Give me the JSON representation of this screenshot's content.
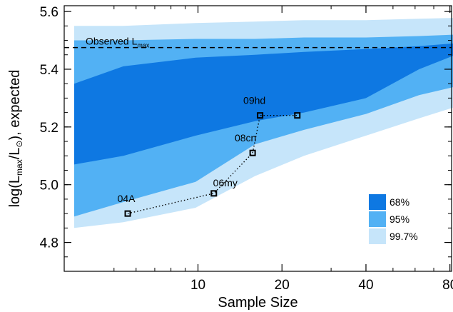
{
  "chart_data": {
    "type": "area",
    "xlabel": "Sample Size",
    "ylabel": {
      "pre": "log(L",
      "sub1": "max",
      "mid": "/L",
      "sub2": "⊙",
      "post": "), expected"
    },
    "ylim": [
      4.7,
      5.62
    ],
    "x_ticks": [
      {
        "value": 10,
        "label": "10"
      },
      {
        "value": 20,
        "label": "20"
      },
      {
        "value": 40,
        "label": "40"
      },
      {
        "value": 80,
        "label": "80"
      }
    ],
    "y_ticks": [
      {
        "value": 4.8,
        "label": "4.8"
      },
      {
        "value": 5.0,
        "label": "5.0"
      },
      {
        "value": 5.2,
        "label": "5.2"
      },
      {
        "value": 5.4,
        "label": "5.4"
      },
      {
        "value": 5.6,
        "label": "5.6"
      }
    ],
    "observed": {
      "value": 5.475,
      "label": "Observed L",
      "sub": "max"
    },
    "bands": [
      {
        "name": "99.7%",
        "color": "#c6e5fa",
        "x": [
          3.6,
          5.4,
          9.8,
          16,
          24,
          40,
          62,
          84
        ],
        "upper": [
          5.55,
          5.55,
          5.56,
          5.565,
          5.57,
          5.57,
          5.575,
          5.578
        ],
        "lower": [
          4.85,
          4.87,
          4.92,
          5.03,
          5.1,
          5.17,
          5.23,
          5.27
        ]
      },
      {
        "name": "95%",
        "color": "#52b1f4",
        "x": [
          3.6,
          5.4,
          9.8,
          16,
          24,
          40,
          62,
          84
        ],
        "upper": [
          5.5,
          5.5,
          5.505,
          5.505,
          5.51,
          5.51,
          5.515,
          5.52
        ],
        "lower": [
          4.89,
          4.94,
          5.01,
          5.14,
          5.19,
          5.245,
          5.31,
          5.34
        ]
      },
      {
        "name": "68%",
        "color": "#0e78e2",
        "x": [
          3.6,
          5.4,
          9.8,
          16,
          24,
          40,
          62,
          84
        ],
        "upper": [
          5.35,
          5.41,
          5.44,
          5.45,
          5.46,
          5.47,
          5.48,
          5.49
        ],
        "lower": [
          5.07,
          5.1,
          5.17,
          5.22,
          5.25,
          5.3,
          5.4,
          5.45
        ]
      }
    ],
    "points": [
      {
        "label": "04A",
        "x": 5.6,
        "y": 4.9
      },
      {
        "label": "06my",
        "x": 11.4,
        "y": 4.97
      },
      {
        "label": "08cn",
        "x": 15.7,
        "y": 5.11
      },
      {
        "label": "09hd",
        "x": 16.7,
        "y": 5.24
      },
      {
        "label": "",
        "x": 22.7,
        "y": 5.24
      }
    ],
    "legend": [
      {
        "label": "68%",
        "color": "#0e78e2"
      },
      {
        "label": "95%",
        "color": "#52b1f4"
      },
      {
        "label": "99.7%",
        "color": "#c6e5fa"
      }
    ]
  }
}
